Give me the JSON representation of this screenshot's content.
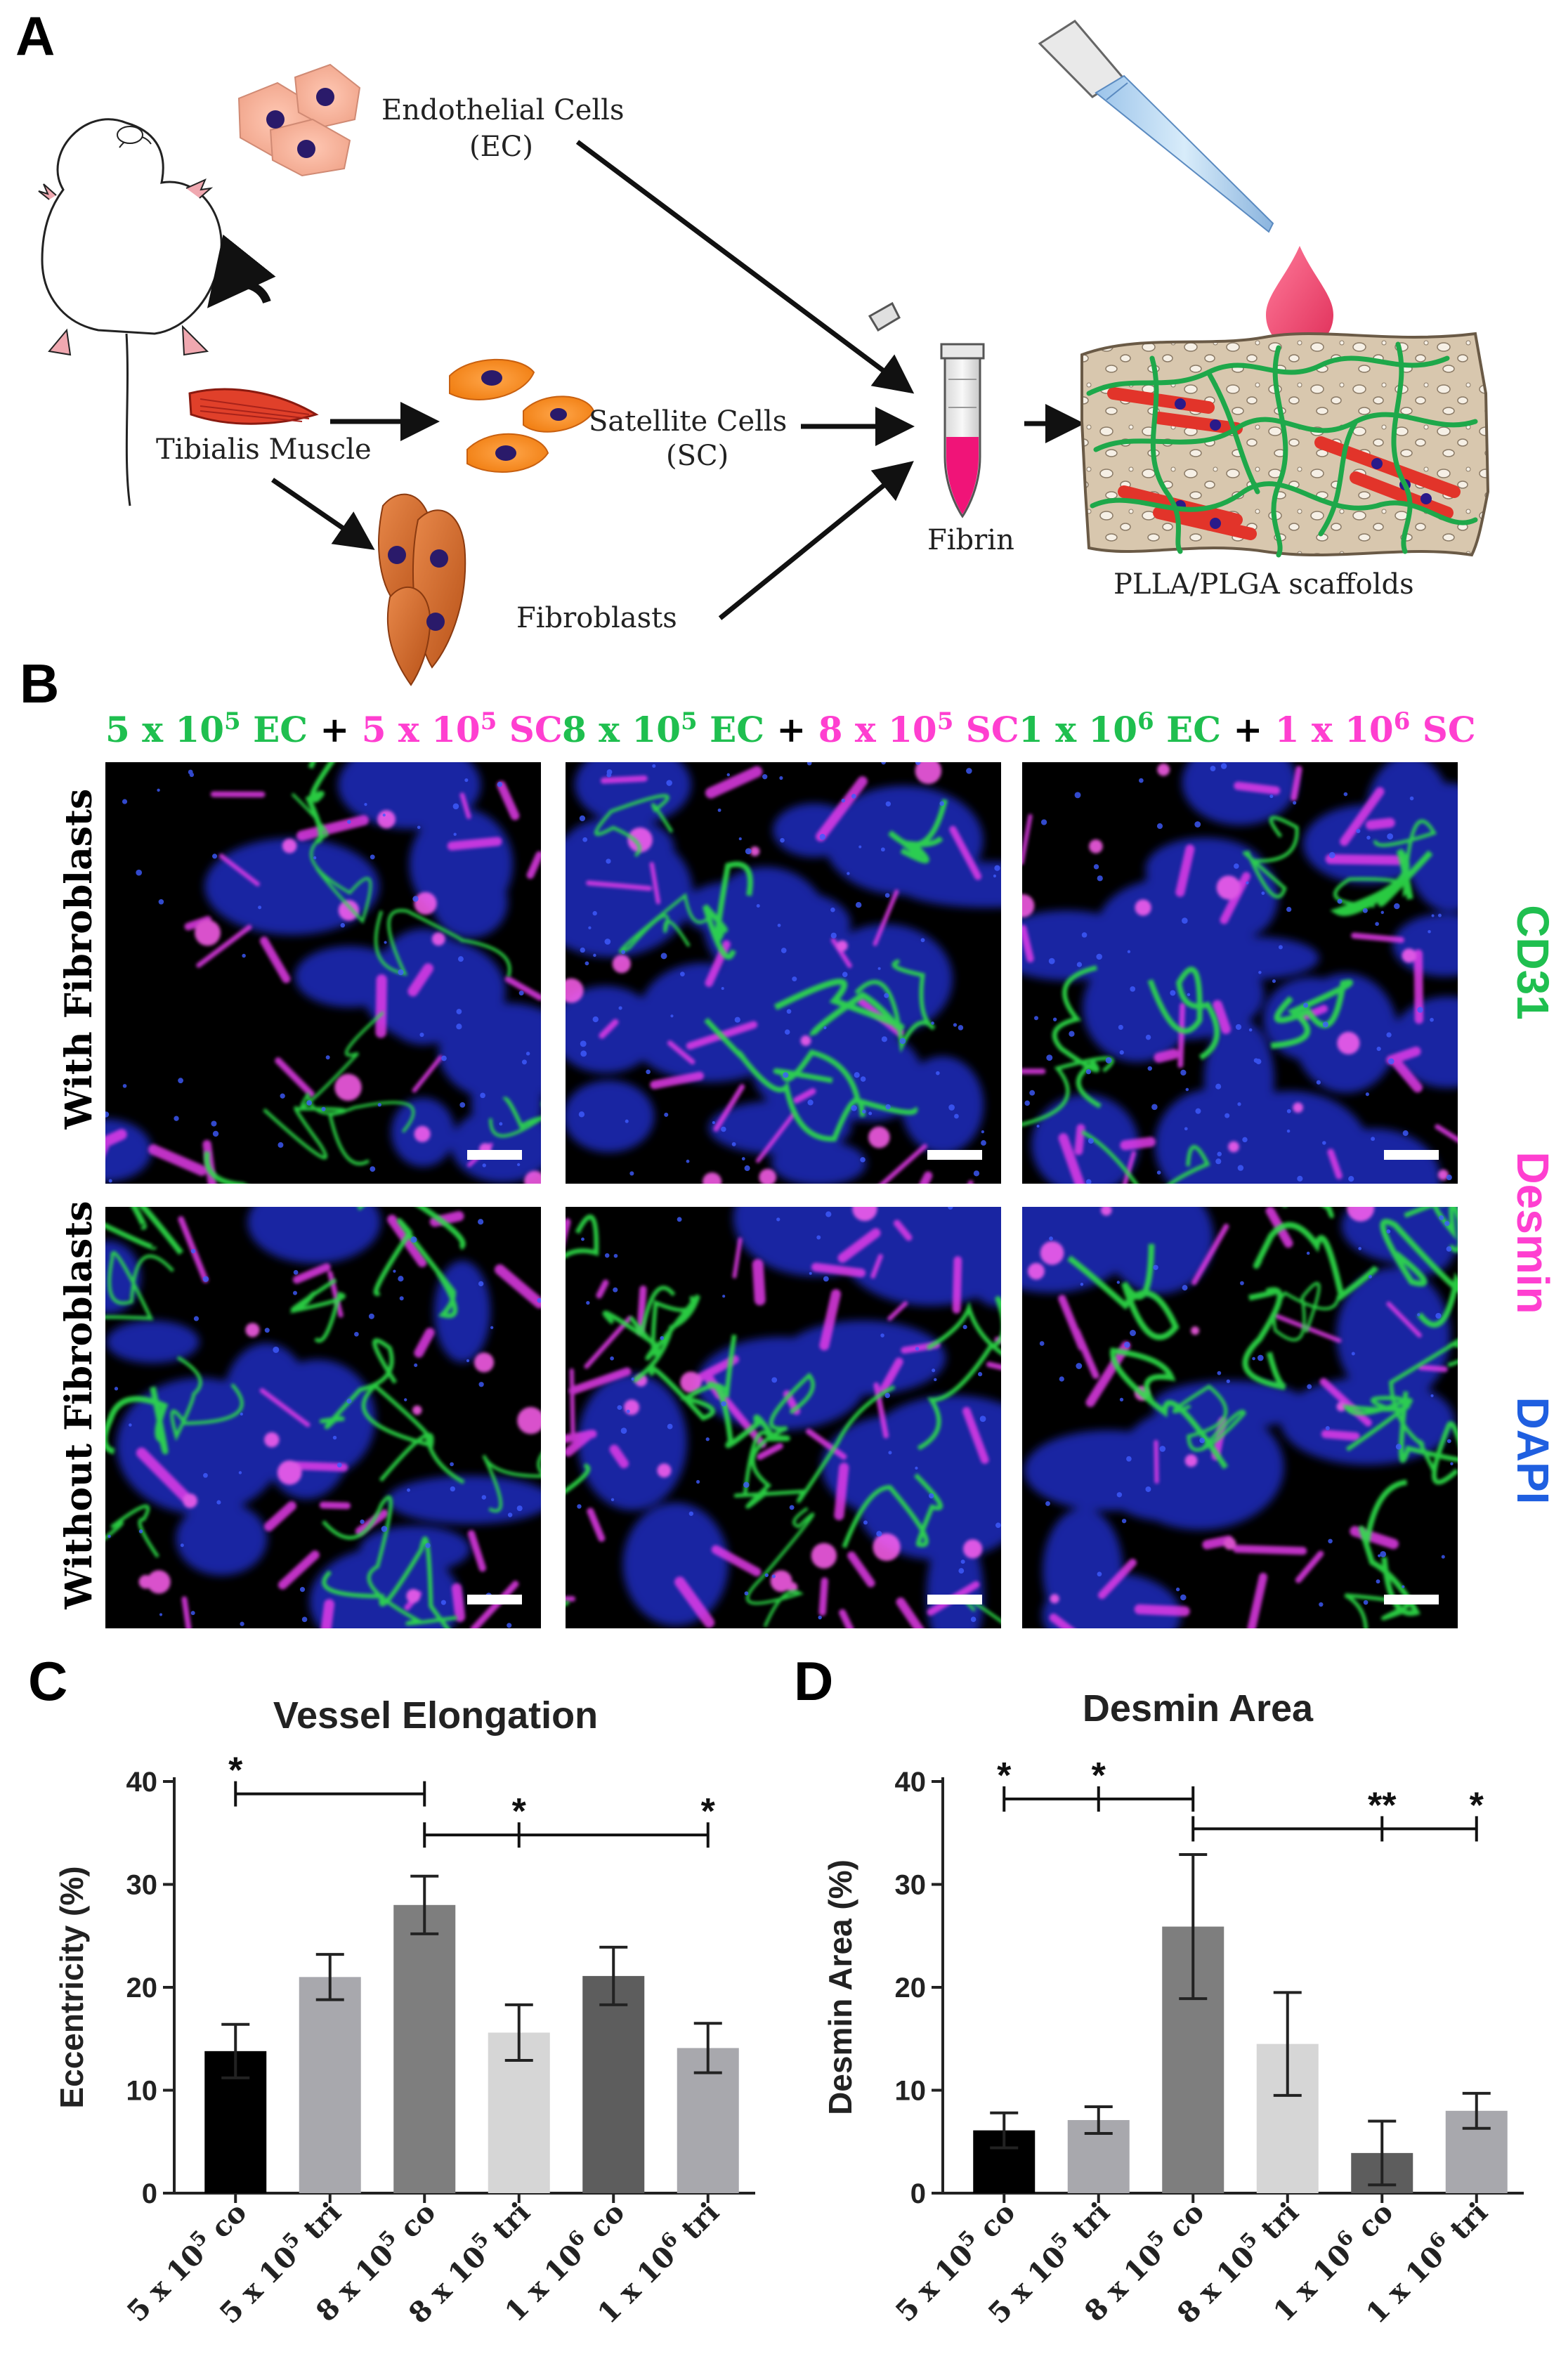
{
  "panels": {
    "a": "A",
    "b": "B",
    "c": "C",
    "d": "D"
  },
  "diagram": {
    "endothelial_line1": "Endothelial Cells",
    "endothelial_line2": "(EC)",
    "satellite_line1": "Satellite Cells",
    "satellite_line2": "(SC)",
    "tibialis": "Tibialis Muscle",
    "fibroblasts": "Fibroblasts",
    "fibrin": "Fibrin",
    "scaffold": "PLLA/PLGA scaffolds"
  },
  "micrographs": {
    "conditions": [
      {
        "ec": "5 x 10",
        "ec_exp": "5",
        "ec_unit": " EC",
        "plus": "+",
        "sc": "5 x 10",
        "sc_exp": "5",
        "sc_unit": " SC"
      },
      {
        "ec": "8 x 10",
        "ec_exp": "5",
        "ec_unit": " EC",
        "plus": "+",
        "sc": "8 x 10",
        "sc_exp": "5",
        "sc_unit": " SC"
      },
      {
        "ec": "1 x 10",
        "ec_exp": "6",
        "ec_unit": " EC",
        "plus": "+",
        "sc": "1 x 10",
        "sc_exp": "6",
        "sc_unit": " SC"
      }
    ],
    "rows": [
      "With Fibroblasts",
      "Without  Fibroblasts"
    ],
    "stains": [
      {
        "label": "CD31",
        "color": "#1fbf4f"
      },
      {
        "label": "Desmin",
        "color": "#ff3fd0"
      },
      {
        "label": "DAPI",
        "color": "#1f5fe0"
      }
    ],
    "colors": {
      "ec_text": "#1fbf4f",
      "sc_text": "#ff3fd0",
      "background": "#000000",
      "green": "#2de04a",
      "magenta": "#e23ae8",
      "blue": "#2030d8"
    }
  },
  "chart_data": [
    {
      "type": "bar",
      "title": "Vessel Elongation",
      "ylabel": "Eccentricity  (%)",
      "ylim": [
        0,
        40
      ],
      "yticks": [
        0,
        10,
        20,
        30,
        40
      ],
      "categories": [
        {
          "base": "5 x 10",
          "exp": "5",
          "suffix": " co"
        },
        {
          "base": "5 x 10",
          "exp": "5",
          "suffix": " tri"
        },
        {
          "base": "8 x 10",
          "exp": "5",
          "suffix": " co"
        },
        {
          "base": "8 x 10",
          "exp": "5",
          "suffix": " tri"
        },
        {
          "base": "1 x 10",
          "exp": "6",
          "suffix": " co"
        },
        {
          "base": "1 x 10",
          "exp": "6",
          "suffix": " tri"
        }
      ],
      "values": [
        13.8,
        21.0,
        28.0,
        15.6,
        21.1,
        14.1
      ],
      "errors": [
        2.6,
        2.2,
        2.8,
        2.7,
        2.8,
        2.4
      ],
      "colors": [
        "#000000",
        "#a8a8ad",
        "#7e7e7e",
        "#d6d6d6",
        "#5d5d5d",
        "#a8a8ad"
      ],
      "significance": [
        {
          "from": 0,
          "to": 2,
          "y": 38.8,
          "marks": [
            {
              "at": 0,
              "label": "*"
            }
          ]
        },
        {
          "from": 2,
          "to": 5,
          "y": 34.8,
          "marks": [
            {
              "at": 3,
              "label": "*"
            },
            {
              "at": 5,
              "label": "*"
            }
          ]
        }
      ]
    },
    {
      "type": "bar",
      "title": "Desmin Area",
      "ylabel": "Desmin Area (%)",
      "ylim": [
        0,
        40
      ],
      "yticks": [
        0,
        10,
        20,
        30,
        40
      ],
      "categories": [
        {
          "base": "5 x 10",
          "exp": "5",
          "suffix": " co"
        },
        {
          "base": "5 x 10",
          "exp": "5",
          "suffix": " tri"
        },
        {
          "base": "8 x 10",
          "exp": "5",
          "suffix": " co"
        },
        {
          "base": "8 x 10",
          "exp": "5",
          "suffix": " tri"
        },
        {
          "base": "1 x 10",
          "exp": "6",
          "suffix": " co"
        },
        {
          "base": "1 x 10",
          "exp": "6",
          "suffix": " tri"
        }
      ],
      "values": [
        6.1,
        7.1,
        25.9,
        14.5,
        3.9,
        8.0
      ],
      "errors": [
        1.7,
        1.3,
        7.0,
        5.0,
        3.1,
        1.7
      ],
      "colors": [
        "#000000",
        "#a8a8ad",
        "#7e7e7e",
        "#d6d6d6",
        "#5d5d5d",
        "#a8a8ad"
      ],
      "significance": [
        {
          "from": 0,
          "to": 2,
          "y": 38.3,
          "marks": [
            {
              "at": 0,
              "label": "*"
            },
            {
              "at": 1,
              "label": "*"
            }
          ]
        },
        {
          "from": 2,
          "to": 5,
          "y": 35.4,
          "marks": [
            {
              "at": 4,
              "label": "**"
            },
            {
              "at": 5,
              "label": "*"
            }
          ]
        }
      ]
    }
  ]
}
